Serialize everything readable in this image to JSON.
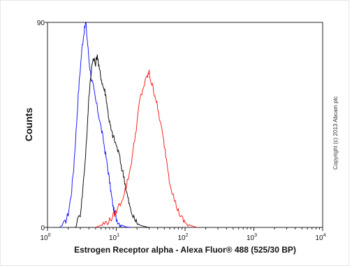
{
  "chart_data": {
    "type": "line",
    "title": "",
    "xlabel": "Estrogen Receptor alpha - Alexa Fluor® 488 (525/30 BP)",
    "ylabel": "Counts",
    "xscale": "log",
    "xlim": [
      1,
      10000
    ],
    "ylim": [
      0,
      90
    ],
    "ytick_labels": [
      "0",
      "90"
    ],
    "xtick_labels": [
      {
        "base": "10",
        "exp": "0"
      },
      {
        "base": "10",
        "exp": "1"
      },
      {
        "base": "10",
        "exp": "2"
      },
      {
        "base": "10",
        "exp": "3"
      },
      {
        "base": "10",
        "exp": "4"
      }
    ],
    "grid": false,
    "legend": "none",
    "annotation": "Copyright (c) 2013 Abcam plc",
    "series": [
      {
        "color": "#1a1aff",
        "x": [
          1.5,
          1.8,
          2.0,
          2.2,
          2.4,
          2.6,
          2.8,
          3.0,
          3.2,
          3.4,
          3.6,
          3.8,
          4.0,
          4.3,
          4.6,
          5.0,
          5.5,
          6.0,
          6.5,
          7.0,
          7.5,
          8.0,
          8.5,
          9.0,
          9.5,
          10.0,
          11.0,
          12.0,
          13.0,
          14.0,
          16.0
        ],
        "y": [
          0,
          2,
          6,
          14,
          26,
          42,
          58,
          70,
          80,
          86,
          90,
          82,
          74,
          66,
          62,
          56,
          50,
          44,
          38,
          32,
          26,
          20,
          14,
          9,
          6,
          4,
          2,
          1,
          0.5,
          0.2,
          0
        ]
      },
      {
        "color": "#111111",
        "x": [
          2.5,
          3.0,
          3.2,
          3.5,
          3.8,
          4.0,
          4.3,
          4.6,
          5.0,
          5.3,
          5.6,
          6.0,
          6.4,
          6.8,
          7.2,
          7.6,
          8.0,
          8.5,
          9.0,
          10.0,
          11.0,
          12.0,
          13.0,
          14.0,
          15.0,
          16.0,
          18.0,
          20.0,
          22.0,
          25.0,
          30.0
        ],
        "y": [
          0,
          6,
          14,
          28,
          44,
          58,
          68,
          74,
          72,
          76,
          70,
          66,
          62,
          60,
          56,
          50,
          46,
          42,
          40,
          36,
          32,
          26,
          22,
          16,
          12,
          8,
          4,
          2,
          1,
          0.5,
          0
        ]
      },
      {
        "color": "#ff2222",
        "x": [
          5.0,
          6.0,
          7.0,
          8.0,
          9.0,
          10.0,
          12.0,
          14.0,
          16.0,
          18.0,
          20.0,
          22.0,
          25.0,
          28.0,
          30.0,
          32.0,
          35.0,
          38.0,
          40.0,
          45.0,
          50.0,
          55.0,
          60.0,
          70.0,
          80.0,
          90.0,
          100.0,
          120.0,
          150.0
        ],
        "y": [
          0,
          1,
          2,
          3,
          5,
          7,
          12,
          18,
          26,
          36,
          46,
          56,
          62,
          66,
          68,
          64,
          60,
          56,
          52,
          44,
          36,
          28,
          20,
          12,
          7,
          4,
          2,
          0.8,
          0
        ]
      }
    ]
  }
}
